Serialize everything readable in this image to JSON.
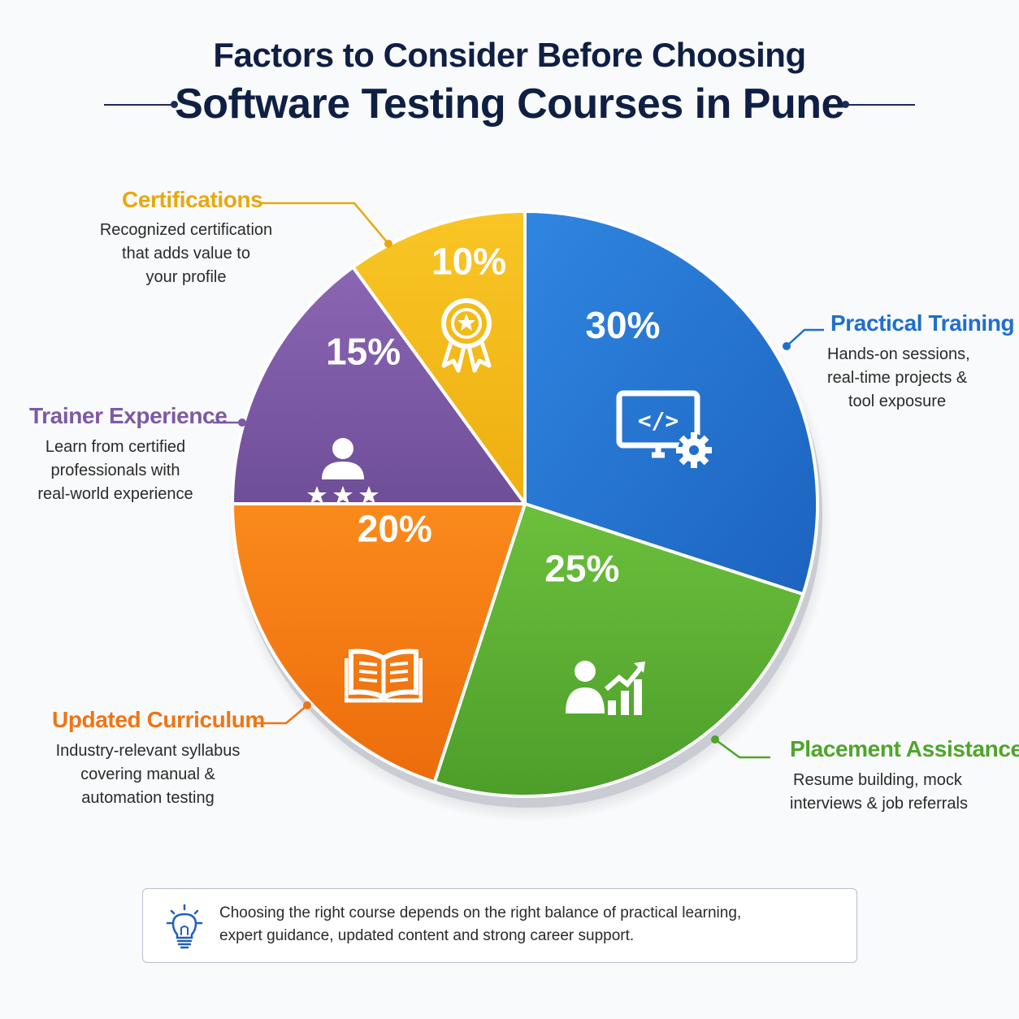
{
  "header": {
    "line1": "Factors to Consider Before Choosing",
    "line2": "Software Testing Courses in Pune"
  },
  "chart_data": {
    "type": "pie",
    "slices": [
      {
        "label": "Practical Training",
        "value": 30,
        "value_label": "30%",
        "color": "#1f6fcd",
        "icon": "code-monitor-gear-icon",
        "desc": [
          "Hands-on sessions,",
          "real-time projects &",
          "tool exposure"
        ]
      },
      {
        "label": "Placement Assistance",
        "value": 25,
        "value_label": "25%",
        "color": "#5bb134",
        "icon": "person-growth-chart-icon",
        "desc": [
          "Resume building, mock",
          "interviews & job referrals"
        ]
      },
      {
        "label": "Updated Curriculum",
        "value": 20,
        "value_label": "20%",
        "color": "#f47b14",
        "icon": "open-book-icon",
        "desc": [
          "Industry-relevant syllabus",
          "covering manual &",
          "automation testing"
        ]
      },
      {
        "label": "Trainer Experience",
        "value": 15,
        "value_label": "15%",
        "color": "#7d5aa5",
        "icon": "trainer-stars-icon",
        "desc": [
          "Learn from certified",
          "professionals with",
          "real-world experience"
        ]
      },
      {
        "label": "Certifications",
        "value": 10,
        "value_label": "10%",
        "color": "#f3bb18",
        "icon": "award-ribbon-icon",
        "desc": [
          "Recognized certification",
          "that adds value to",
          "your profile"
        ]
      }
    ]
  },
  "note": {
    "lines": [
      "Choosing the right course depends on the right balance of practical learning,",
      "expert guidance, updated content and strong career support."
    ],
    "icon": "lightbulb-icon"
  }
}
